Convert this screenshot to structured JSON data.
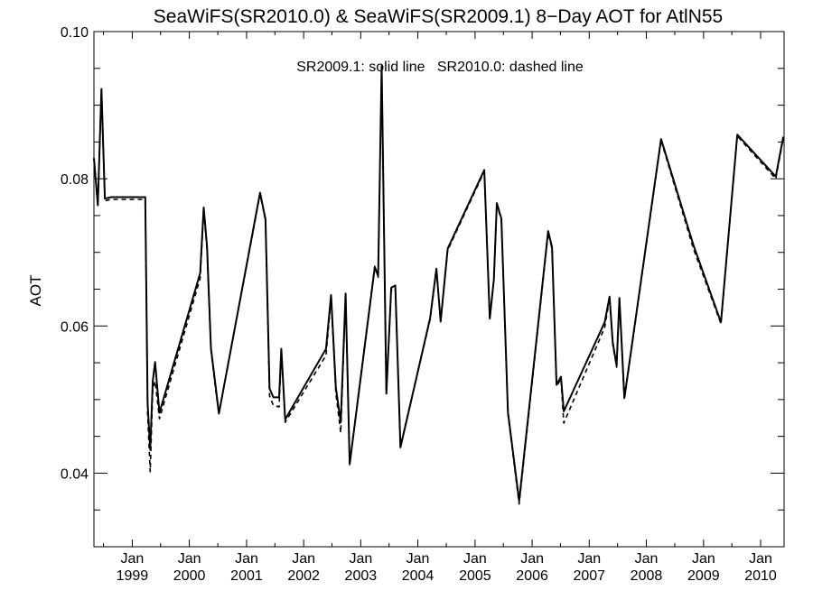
{
  "chart_data": {
    "type": "line",
    "title": "SeaWiFS(SR2010.0) & SeaWiFS(SR2009.1) 8−Day AOT for AtlN55",
    "annotation": "SR2009.1: solid line   SR2010.0: dashed line",
    "xlabel": "",
    "ylabel": "AOT",
    "ylim": [
      0.03,
      0.1
    ],
    "yticks": [
      0.04,
      0.06,
      0.08,
      0.1
    ],
    "ytick_labels": [
      "0.04",
      "0.06",
      "0.08",
      "0.10"
    ],
    "xlim": [
      "1998-05-01",
      "2010-05-31"
    ],
    "xticks": [
      "1999-01-01",
      "2000-01-01",
      "2001-01-01",
      "2002-01-01",
      "2003-01-01",
      "2004-01-01",
      "2005-01-01",
      "2006-01-01",
      "2007-01-01",
      "2008-01-01",
      "2009-01-01",
      "2010-01-01"
    ],
    "xtick_labels_top": [
      "Jan",
      "Jan",
      "Jan",
      "Jan",
      "Jan",
      "Jan",
      "Jan",
      "Jan",
      "Jan",
      "Jan",
      "Jan",
      "Jan"
    ],
    "xtick_labels_bottom": [
      "1999",
      "2000",
      "2001",
      "2002",
      "2003",
      "2004",
      "2005",
      "2006",
      "2007",
      "2008",
      "2009",
      "2010"
    ],
    "grid": false,
    "series": [
      {
        "name": "SR2009.1",
        "line_style": "solid",
        "color": "#000000",
        "points": [
          [
            "1998-05-01",
            0.0828
          ],
          [
            "1998-05-26",
            0.0764
          ],
          [
            "1998-06-18",
            0.0922
          ],
          [
            "1998-07-10",
            0.0773
          ],
          [
            "1998-08-18",
            0.0775
          ],
          [
            "1999-03-25",
            0.0775
          ],
          [
            "1999-04-09",
            0.0495
          ],
          [
            "1999-04-26",
            0.0432
          ],
          [
            "1999-05-12",
            0.0525
          ],
          [
            "1999-05-27",
            0.0551
          ],
          [
            "1999-06-24",
            0.0482
          ],
          [
            "2000-03-10",
            0.0672
          ],
          [
            "2000-04-02",
            0.0761
          ],
          [
            "2000-04-23",
            0.0708
          ],
          [
            "2000-05-18",
            0.057
          ],
          [
            "2000-06-19",
            0.0515
          ],
          [
            "2000-07-08",
            0.0481
          ],
          [
            "2001-03-28",
            0.0781
          ],
          [
            "2001-05-02",
            0.0745
          ],
          [
            "2001-05-28",
            0.0515
          ],
          [
            "2001-06-21",
            0.0503
          ],
          [
            "2001-07-28",
            0.0503
          ],
          [
            "2001-08-11",
            0.0569
          ],
          [
            "2001-09-05",
            0.0473
          ],
          [
            "2002-05-24",
            0.0569
          ],
          [
            "2002-06-25",
            0.0642
          ],
          [
            "2002-07-26",
            0.0516
          ],
          [
            "2002-08-26",
            0.0469
          ],
          [
            "2002-09-26",
            0.0644
          ],
          [
            "2002-10-22",
            0.0412
          ],
          [
            "2003-04-01",
            0.068
          ],
          [
            "2003-04-22",
            0.0668
          ],
          [
            "2003-05-15",
            0.0953
          ],
          [
            "2003-06-14",
            0.0508
          ],
          [
            "2003-07-15",
            0.0652
          ],
          [
            "2003-08-10",
            0.0655
          ],
          [
            "2003-09-12",
            0.0435
          ],
          [
            "2004-03-20",
            0.0611
          ],
          [
            "2004-04-29",
            0.0678
          ],
          [
            "2004-05-26",
            0.0606
          ],
          [
            "2004-07-10",
            0.0705
          ],
          [
            "2005-03-01",
            0.0812
          ],
          [
            "2005-04-05",
            0.061
          ],
          [
            "2005-05-01",
            0.0663
          ],
          [
            "2005-05-20",
            0.0767
          ],
          [
            "2005-06-18",
            0.0746
          ],
          [
            "2005-07-30",
            0.0483
          ],
          [
            "2005-10-10",
            0.0362
          ],
          [
            "2006-04-13",
            0.0729
          ],
          [
            "2006-05-08",
            0.0707
          ],
          [
            "2006-06-06",
            0.052
          ],
          [
            "2006-07-04",
            0.0531
          ],
          [
            "2006-07-22",
            0.0484
          ],
          [
            "2007-04-10",
            0.0605
          ],
          [
            "2007-05-11",
            0.064
          ],
          [
            "2007-05-31",
            0.0578
          ],
          [
            "2007-06-25",
            0.0546
          ],
          [
            "2007-07-13",
            0.0638
          ],
          [
            "2007-08-14",
            0.0502
          ],
          [
            "2008-04-04",
            0.0854
          ],
          [
            "2008-10-28",
            0.071
          ],
          [
            "2009-04-22",
            0.0605
          ],
          [
            "2009-08-05",
            0.086
          ],
          [
            "2010-04-08",
            0.0803
          ],
          [
            "2010-05-26",
            0.0857
          ]
        ]
      },
      {
        "name": "SR2010.0",
        "line_style": "dashed",
        "color": "#000000",
        "points": [
          [
            "1998-05-01",
            0.0828
          ],
          [
            "1998-05-26",
            0.0764
          ],
          [
            "1998-06-18",
            0.0922
          ],
          [
            "1998-07-10",
            0.077
          ],
          [
            "1998-08-18",
            0.0772
          ],
          [
            "1999-03-25",
            0.0772
          ],
          [
            "1999-04-09",
            0.048
          ],
          [
            "1999-04-26",
            0.0402
          ],
          [
            "1999-05-12",
            0.0515
          ],
          [
            "1999-05-27",
            0.0525
          ],
          [
            "1999-06-24",
            0.0474
          ],
          [
            "2000-03-10",
            0.0665
          ],
          [
            "2000-04-02",
            0.0758
          ],
          [
            "2000-04-23",
            0.0702
          ],
          [
            "2000-05-18",
            0.0568
          ],
          [
            "2000-06-19",
            0.051
          ],
          [
            "2000-07-08",
            0.0481
          ],
          [
            "2001-03-28",
            0.0779
          ],
          [
            "2001-05-02",
            0.0743
          ],
          [
            "2001-05-28",
            0.0505
          ],
          [
            "2001-06-21",
            0.0492
          ],
          [
            "2001-07-28",
            0.049
          ],
          [
            "2001-08-11",
            0.0567
          ],
          [
            "2001-09-05",
            0.0469
          ],
          [
            "2002-05-24",
            0.056
          ],
          [
            "2002-06-25",
            0.0638
          ],
          [
            "2002-07-26",
            0.0508
          ],
          [
            "2002-08-26",
            0.0455
          ],
          [
            "2002-09-26",
            0.0641
          ],
          [
            "2002-10-22",
            0.0414
          ],
          [
            "2003-04-01",
            0.0682
          ],
          [
            "2003-04-22",
            0.0666
          ],
          [
            "2003-05-15",
            0.0951
          ],
          [
            "2003-06-14",
            0.051
          ],
          [
            "2003-07-15",
            0.0648
          ],
          [
            "2003-08-10",
            0.0652
          ],
          [
            "2003-09-12",
            0.0437
          ],
          [
            "2004-03-20",
            0.0609
          ],
          [
            "2004-04-29",
            0.0676
          ],
          [
            "2004-05-26",
            0.0607
          ],
          [
            "2004-07-10",
            0.0703
          ],
          [
            "2005-03-01",
            0.081
          ],
          [
            "2005-04-05",
            0.0612
          ],
          [
            "2005-05-01",
            0.0661
          ],
          [
            "2005-05-20",
            0.0765
          ],
          [
            "2005-06-18",
            0.0744
          ],
          [
            "2005-07-30",
            0.048
          ],
          [
            "2005-10-10",
            0.0358
          ],
          [
            "2006-04-13",
            0.0726
          ],
          [
            "2006-05-08",
            0.0705
          ],
          [
            "2006-06-06",
            0.0518
          ],
          [
            "2006-07-04",
            0.0528
          ],
          [
            "2006-07-22",
            0.0468
          ],
          [
            "2007-04-10",
            0.0598
          ],
          [
            "2007-05-11",
            0.0637
          ],
          [
            "2007-05-31",
            0.0575
          ],
          [
            "2007-06-25",
            0.0544
          ],
          [
            "2007-07-13",
            0.0635
          ],
          [
            "2007-08-14",
            0.05
          ],
          [
            "2008-04-04",
            0.0852
          ],
          [
            "2008-10-28",
            0.0705
          ],
          [
            "2009-04-22",
            0.0603
          ],
          [
            "2009-08-05",
            0.0858
          ],
          [
            "2010-04-08",
            0.08
          ],
          [
            "2010-05-26",
            0.0855
          ]
        ]
      }
    ]
  }
}
